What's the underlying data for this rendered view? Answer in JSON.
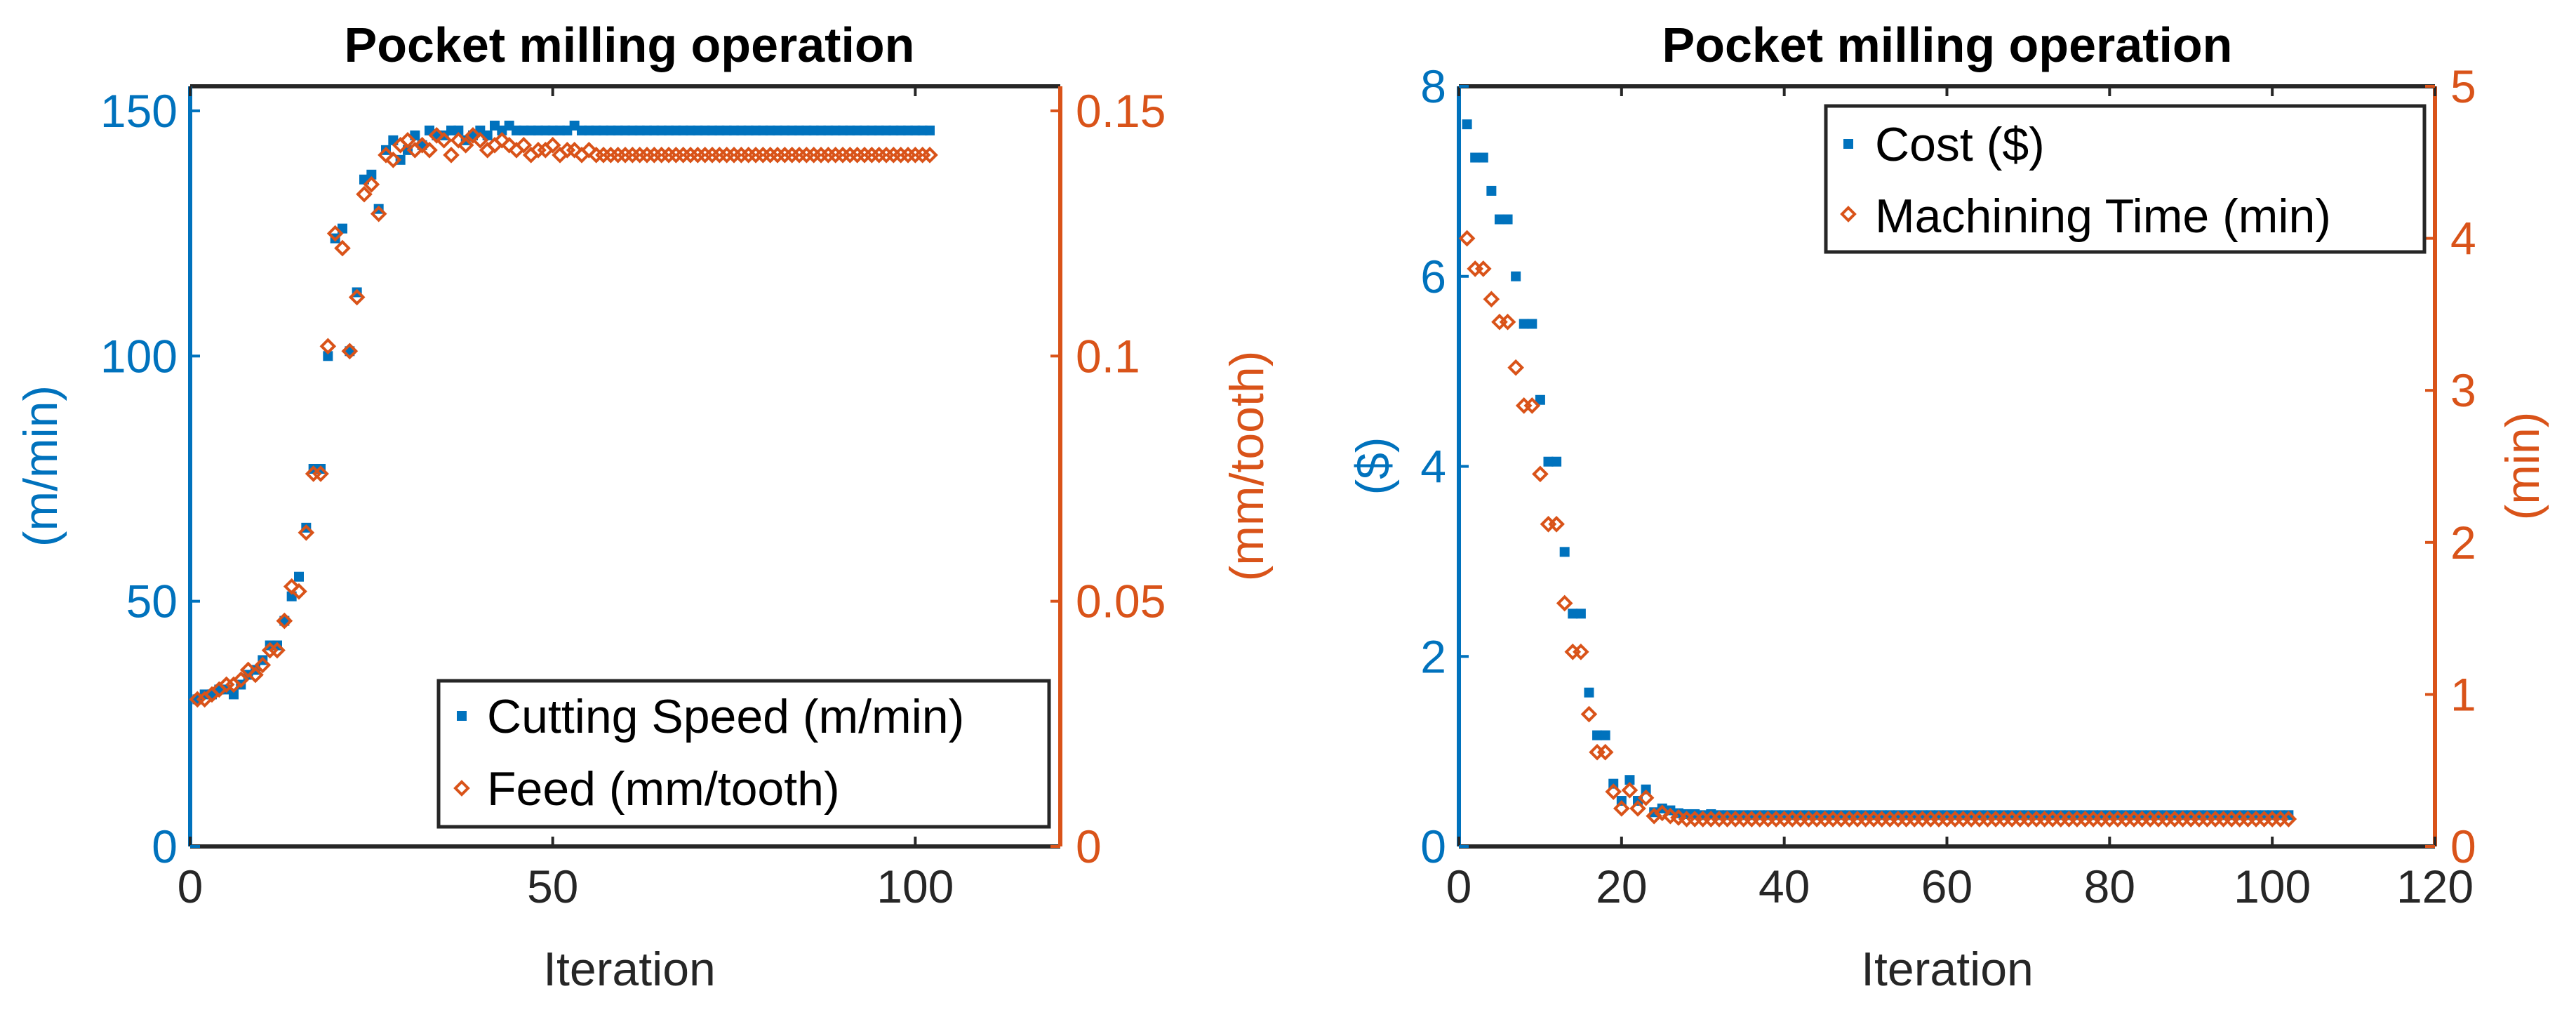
{
  "colors": {
    "blue": "#0072BD",
    "orange": "#D95319",
    "axis": "#262626",
    "frame": "#262626"
  },
  "chart_data": [
    {
      "type": "scatter",
      "title": "Pocket milling operation",
      "xlabel": "Iteration",
      "ylabel_left": "(m/min)",
      "ylabel_right": "(mm/tooth)",
      "xlim": [
        0,
        120
      ],
      "ylim_left": [
        0,
        155
      ],
      "ylim_right": [
        0,
        0.155
      ],
      "xticks": [
        "0",
        "50",
        "100"
      ],
      "yticks_left": [
        "0",
        "50",
        "100",
        "150"
      ],
      "yticks_right": [
        "0",
        "0.05",
        "0.1",
        "0.15"
      ],
      "legend_position": "bottom-right",
      "series": [
        {
          "name": "Cutting Speed (m/min)",
          "axis": "left",
          "marker": "dot",
          "x": [
            1,
            2,
            3,
            4,
            5,
            6,
            7,
            8,
            9,
            10,
            11,
            12,
            13,
            14,
            15,
            16,
            17,
            18,
            19,
            20,
            21,
            22,
            23,
            24,
            25,
            26,
            27,
            28,
            29,
            30,
            31,
            32,
            33,
            34,
            35,
            36,
            37,
            38,
            39,
            40,
            41,
            42,
            43,
            44,
            45,
            46,
            47,
            48,
            49,
            50,
            51,
            52,
            53,
            54,
            55,
            56,
            57,
            58,
            59,
            60,
            61,
            62,
            63,
            64,
            65,
            66,
            67,
            68,
            69,
            70,
            71,
            72,
            73,
            74,
            75,
            76,
            77,
            78,
            79,
            80,
            81,
            82,
            83,
            84,
            85,
            86,
            87,
            88,
            89,
            90,
            91,
            92,
            93,
            94,
            95,
            96,
            97,
            98,
            99,
            100,
            101,
            102
          ],
          "y": [
            30,
            31,
            31,
            32,
            32,
            31,
            33,
            35,
            36,
            38,
            41,
            41,
            46,
            51,
            55,
            65,
            77,
            77,
            100,
            124,
            126,
            101,
            113,
            136,
            137,
            130,
            142,
            144,
            140,
            142,
            145,
            143,
            146,
            145,
            145,
            146,
            146,
            144,
            145,
            146,
            145,
            147,
            146,
            147,
            146,
            146,
            146,
            146,
            146,
            146,
            146,
            146,
            147,
            146,
            146,
            146,
            146,
            146,
            146,
            146,
            146,
            146,
            146,
            146,
            146,
            146,
            146,
            146,
            146,
            146,
            146,
            146,
            146,
            146,
            146,
            146,
            146,
            146,
            146,
            146,
            146,
            146,
            146,
            146,
            146,
            146,
            146,
            146,
            146,
            146,
            146,
            146,
            146,
            146,
            146,
            146,
            146,
            146,
            146,
            146,
            146,
            146
          ]
        },
        {
          "name": "Feed (mm/tooth)",
          "axis": "right",
          "marker": "diamond",
          "x": [
            1,
            2,
            3,
            4,
            5,
            6,
            7,
            8,
            9,
            10,
            11,
            12,
            13,
            14,
            15,
            16,
            17,
            18,
            19,
            20,
            21,
            22,
            23,
            24,
            25,
            26,
            27,
            28,
            29,
            30,
            31,
            32,
            33,
            34,
            35,
            36,
            37,
            38,
            39,
            40,
            41,
            42,
            43,
            44,
            45,
            46,
            47,
            48,
            49,
            50,
            51,
            52,
            53,
            54,
            55,
            56,
            57,
            58,
            59,
            60,
            61,
            62,
            63,
            64,
            65,
            66,
            67,
            68,
            69,
            70,
            71,
            72,
            73,
            74,
            75,
            76,
            77,
            78,
            79,
            80,
            81,
            82,
            83,
            84,
            85,
            86,
            87,
            88,
            89,
            90,
            91,
            92,
            93,
            94,
            95,
            96,
            97,
            98,
            99,
            100,
            101,
            102
          ],
          "y": [
            0.03,
            0.03,
            0.031,
            0.032,
            0.033,
            0.033,
            0.034,
            0.036,
            0.035,
            0.037,
            0.04,
            0.04,
            0.046,
            0.053,
            0.052,
            0.064,
            0.076,
            0.076,
            0.102,
            0.125,
            0.122,
            0.101,
            0.112,
            0.133,
            0.135,
            0.129,
            0.141,
            0.14,
            0.143,
            0.144,
            0.142,
            0.143,
            0.142,
            0.145,
            0.144,
            0.141,
            0.144,
            0.143,
            0.145,
            0.144,
            0.142,
            0.143,
            0.144,
            0.143,
            0.142,
            0.143,
            0.141,
            0.142,
            0.142,
            0.143,
            0.141,
            0.142,
            0.142,
            0.141,
            0.142,
            0.141,
            0.141,
            0.141,
            0.141,
            0.141,
            0.141,
            0.141,
            0.141,
            0.141,
            0.141,
            0.141,
            0.141,
            0.141,
            0.141,
            0.141,
            0.141,
            0.141,
            0.141,
            0.141,
            0.141,
            0.141,
            0.141,
            0.141,
            0.141,
            0.141,
            0.141,
            0.141,
            0.141,
            0.141,
            0.141,
            0.141,
            0.141,
            0.141,
            0.141,
            0.141,
            0.141,
            0.141,
            0.141,
            0.141,
            0.141,
            0.141,
            0.141,
            0.141,
            0.141,
            0.141,
            0.141,
            0.141
          ]
        }
      ]
    },
    {
      "type": "scatter",
      "title": "Pocket milling operation",
      "xlabel": "Iteration",
      "ylabel_left": "($)",
      "ylabel_right": "(min)",
      "xlim": [
        0,
        120
      ],
      "ylim_left": [
        0,
        8
      ],
      "ylim_right": [
        0,
        5
      ],
      "xticks": [
        "0",
        "20",
        "40",
        "60",
        "80",
        "100",
        "120"
      ],
      "yticks_left": [
        "0",
        "2",
        "4",
        "6",
        "8"
      ],
      "yticks_right": [
        "0",
        "1",
        "2",
        "3",
        "4",
        "5"
      ],
      "legend_position": "top-right",
      "series": [
        {
          "name": "Cost ($)",
          "axis": "left",
          "marker": "dot",
          "x": [
            1,
            2,
            3,
            4,
            5,
            6,
            7,
            8,
            9,
            10,
            11,
            12,
            13,
            14,
            15,
            16,
            17,
            18,
            19,
            20,
            21,
            22,
            23,
            24,
            25,
            26,
            27,
            28,
            29,
            30,
            31,
            32,
            33,
            34,
            35,
            36,
            37,
            38,
            39,
            40,
            41,
            42,
            43,
            44,
            45,
            46,
            47,
            48,
            49,
            50,
            51,
            52,
            53,
            54,
            55,
            56,
            57,
            58,
            59,
            60,
            61,
            62,
            63,
            64,
            65,
            66,
            67,
            68,
            69,
            70,
            71,
            72,
            73,
            74,
            75,
            76,
            77,
            78,
            79,
            80,
            81,
            82,
            83,
            84,
            85,
            86,
            87,
            88,
            89,
            90,
            91,
            92,
            93,
            94,
            95,
            96,
            97,
            98,
            99,
            100,
            101,
            102
          ],
          "y": [
            7.6,
            7.25,
            7.25,
            6.9,
            6.6,
            6.6,
            6.0,
            5.5,
            5.5,
            4.7,
            4.05,
            4.05,
            3.1,
            2.45,
            2.45,
            1.62,
            1.17,
            1.17,
            0.66,
            0.48,
            0.7,
            0.48,
            0.6,
            0.36,
            0.4,
            0.38,
            0.35,
            0.34,
            0.34,
            0.33,
            0.34,
            0.33,
            0.33,
            0.33,
            0.33,
            0.33,
            0.33,
            0.33,
            0.33,
            0.33,
            0.33,
            0.33,
            0.33,
            0.33,
            0.33,
            0.33,
            0.33,
            0.33,
            0.33,
            0.33,
            0.33,
            0.33,
            0.33,
            0.33,
            0.33,
            0.33,
            0.33,
            0.33,
            0.33,
            0.33,
            0.33,
            0.33,
            0.33,
            0.33,
            0.33,
            0.33,
            0.33,
            0.33,
            0.33,
            0.33,
            0.33,
            0.33,
            0.33,
            0.33,
            0.33,
            0.33,
            0.33,
            0.33,
            0.33,
            0.33,
            0.33,
            0.33,
            0.33,
            0.33,
            0.33,
            0.33,
            0.33,
            0.33,
            0.33,
            0.33,
            0.33,
            0.33,
            0.33,
            0.33,
            0.33,
            0.33,
            0.33,
            0.33,
            0.33,
            0.33,
            0.33,
            0.33
          ]
        },
        {
          "name": "Machining Time (min)",
          "axis": "right",
          "marker": "diamond",
          "x": [
            1,
            2,
            3,
            4,
            5,
            6,
            7,
            8,
            9,
            10,
            11,
            12,
            13,
            14,
            15,
            16,
            17,
            18,
            19,
            20,
            21,
            22,
            23,
            24,
            25,
            26,
            27,
            28,
            29,
            30,
            31,
            32,
            33,
            34,
            35,
            36,
            37,
            38,
            39,
            40,
            41,
            42,
            43,
            44,
            45,
            46,
            47,
            48,
            49,
            50,
            51,
            52,
            53,
            54,
            55,
            56,
            57,
            58,
            59,
            60,
            61,
            62,
            63,
            64,
            65,
            66,
            67,
            68,
            69,
            70,
            71,
            72,
            73,
            74,
            75,
            76,
            77,
            78,
            79,
            80,
            81,
            82,
            83,
            84,
            85,
            86,
            87,
            88,
            89,
            90,
            91,
            92,
            93,
            94,
            95,
            96,
            97,
            98,
            99,
            100,
            101,
            102
          ],
          "y": [
            4.0,
            3.8,
            3.8,
            3.6,
            3.45,
            3.45,
            3.15,
            2.9,
            2.9,
            2.45,
            2.12,
            2.12,
            1.6,
            1.28,
            1.28,
            0.87,
            0.62,
            0.62,
            0.36,
            0.25,
            0.37,
            0.25,
            0.32,
            0.2,
            0.22,
            0.2,
            0.19,
            0.18,
            0.18,
            0.18,
            0.18,
            0.18,
            0.18,
            0.18,
            0.18,
            0.18,
            0.18,
            0.18,
            0.18,
            0.18,
            0.18,
            0.18,
            0.18,
            0.18,
            0.18,
            0.18,
            0.18,
            0.18,
            0.18,
            0.18,
            0.18,
            0.18,
            0.18,
            0.18,
            0.18,
            0.18,
            0.18,
            0.18,
            0.18,
            0.18,
            0.18,
            0.18,
            0.18,
            0.18,
            0.18,
            0.18,
            0.18,
            0.18,
            0.18,
            0.18,
            0.18,
            0.18,
            0.18,
            0.18,
            0.18,
            0.18,
            0.18,
            0.18,
            0.18,
            0.18,
            0.18,
            0.18,
            0.18,
            0.18,
            0.18,
            0.18,
            0.18,
            0.18,
            0.18,
            0.18,
            0.18,
            0.18,
            0.18,
            0.18,
            0.18,
            0.18,
            0.18,
            0.18,
            0.18,
            0.18,
            0.18,
            0.18
          ]
        }
      ]
    }
  ]
}
